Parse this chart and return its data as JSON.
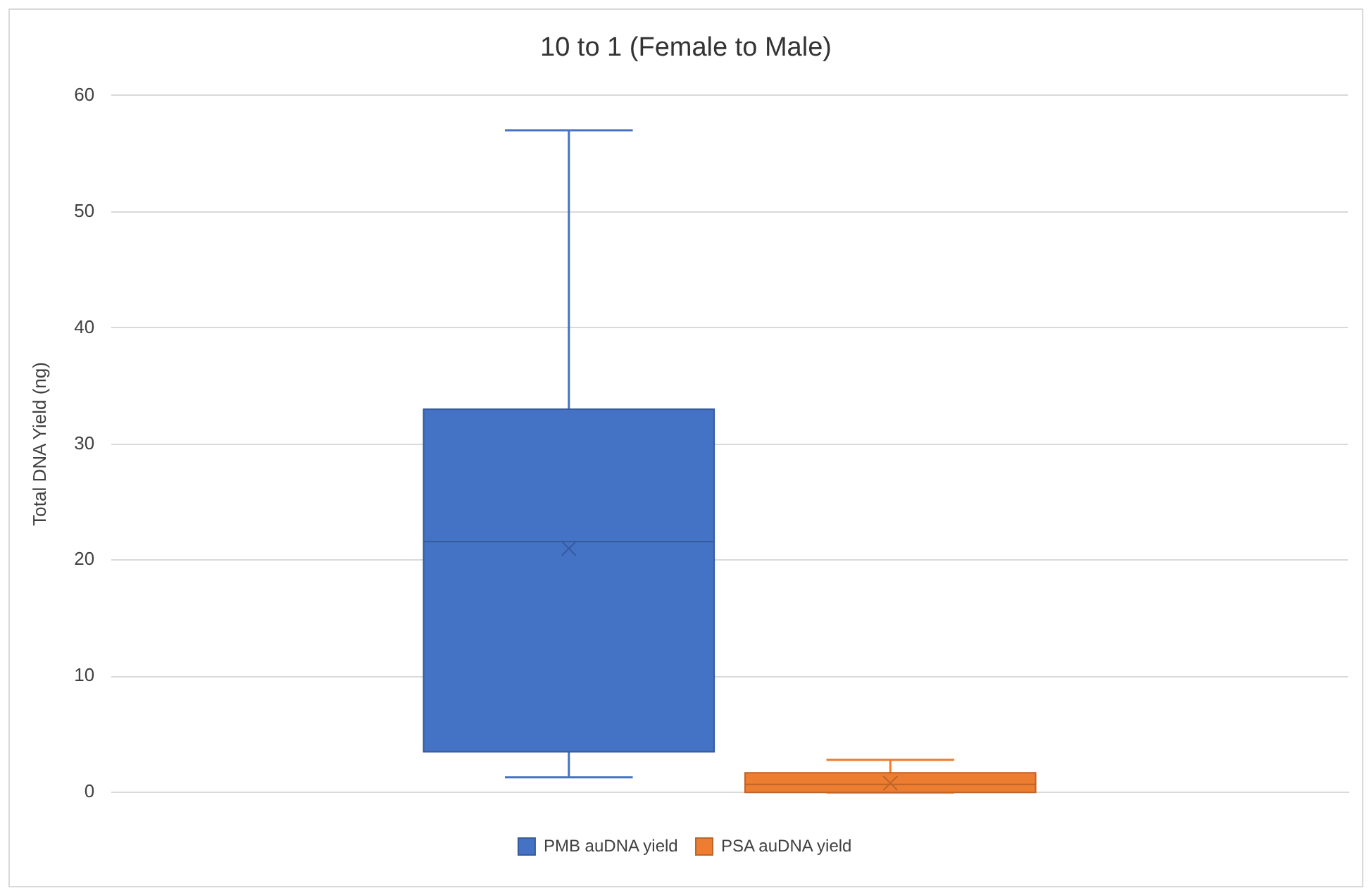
{
  "chart_data": {
    "type": "box",
    "title": "10 to 1 (Female to Male)",
    "ylabel": "Total DNA Yield (ng)",
    "categories": [
      null
    ],
    "series": [
      {
        "name": "PMB auDNA yield",
        "color": "#4472c4",
        "boxes": [
          {
            "low": 1.3,
            "q1": 3.5,
            "median": 21.6,
            "q3": 33,
            "high": 57,
            "mean": 21
          }
        ]
      },
      {
        "name": "PSA auDNA yield",
        "color": "#ed7d31",
        "boxes": [
          {
            "low": 0,
            "q1": 0,
            "median": 0.7,
            "q3": 1.7,
            "high": 2.8,
            "mean": 0.8
          }
        ]
      }
    ],
    "ylim": [
      0,
      60
    ],
    "yticks": [
      0,
      10,
      20,
      30,
      40,
      50,
      60
    ],
    "grid": "y",
    "legend": "bottom"
  }
}
